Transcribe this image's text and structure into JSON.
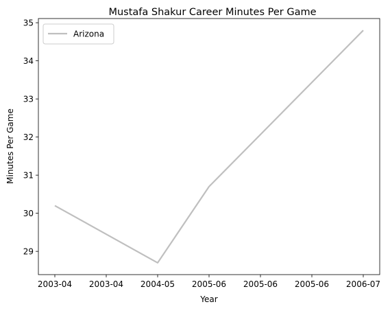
{
  "chart_data": {
    "type": "line",
    "title": "Mustafa Shakur Career Minutes Per Game",
    "xlabel": "Year",
    "ylabel": "Minutes Per Game",
    "x_tick_labels": [
      "2003-04",
      "2003-04",
      "2004-05",
      "2005-06",
      "2005-06",
      "2005-06",
      "2006-07"
    ],
    "y_ticks": [
      29,
      30,
      31,
      32,
      33,
      34,
      35
    ],
    "ylim": [
      28.39,
      35.11
    ],
    "grid": false,
    "legend": "upper-left",
    "series": [
      {
        "name": "Arizona",
        "color": "#bfbfbf",
        "x": [
          "2003-04",
          "2004-05",
          "2005-06",
          "2006-07"
        ],
        "values": [
          30.2,
          28.7,
          30.7,
          34.8
        ]
      }
    ]
  }
}
